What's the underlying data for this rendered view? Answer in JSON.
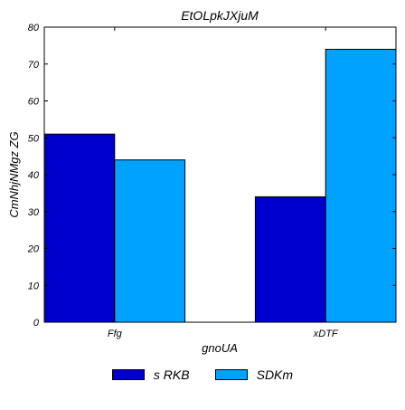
{
  "chart_data": {
    "type": "bar",
    "title": "EtOLpkJXjuM",
    "xlabel": "gnoUA",
    "ylabel": "CmNhjNMgz ZG",
    "categories": [
      "Ffg",
      "xDTF"
    ],
    "series": [
      {
        "name": "s RKB",
        "values": [
          51,
          34
        ],
        "color": "#0000cc"
      },
      {
        "name": "SDKm",
        "values": [
          44,
          74
        ],
        "color": "#00a2ff"
      }
    ],
    "ylim": [
      0,
      80
    ],
    "yticks": [
      0,
      10,
      20,
      30,
      40,
      50,
      60,
      70,
      80
    ],
    "grid": false,
    "legend_position": "bottom-center"
  }
}
